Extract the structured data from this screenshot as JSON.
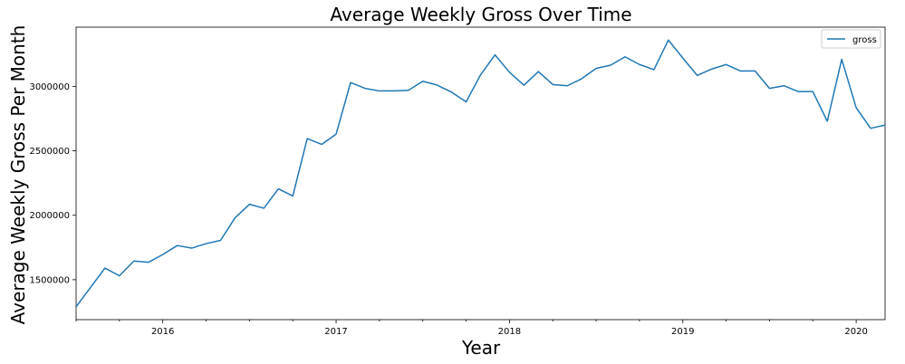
{
  "chart_data": {
    "type": "line",
    "title": "Average Weekly Gross Over Time",
    "xlabel": "Year",
    "ylabel": "Average Weekly Gross Per Month",
    "x_tick_labels": [
      "2016",
      "2017",
      "2018",
      "2019",
      "2020"
    ],
    "y_tick_labels": [
      "1500000",
      "2000000",
      "2500000",
      "3000000"
    ],
    "y_ticks": [
      1500000,
      2000000,
      2500000,
      3000000
    ],
    "ylim": [
      1190000,
      3460000
    ],
    "xlim": [
      "2015-07",
      "2020-03"
    ],
    "grid": false,
    "legend_position": "top-right",
    "series": [
      {
        "name": "gross",
        "color": "#1f77b4",
        "x": [
          "2015-07",
          "2015-08",
          "2015-09",
          "2015-10",
          "2015-11",
          "2015-12",
          "2016-01",
          "2016-02",
          "2016-03",
          "2016-04",
          "2016-05",
          "2016-06",
          "2016-07",
          "2016-08",
          "2016-09",
          "2016-10",
          "2016-11",
          "2016-12",
          "2017-01",
          "2017-02",
          "2017-03",
          "2017-04",
          "2017-05",
          "2017-06",
          "2017-07",
          "2017-08",
          "2017-09",
          "2017-10",
          "2017-11",
          "2017-12",
          "2018-01",
          "2018-02",
          "2018-03",
          "2018-04",
          "2018-05",
          "2018-06",
          "2018-07",
          "2018-08",
          "2018-09",
          "2018-10",
          "2018-11",
          "2018-12",
          "2019-01",
          "2019-02",
          "2019-03",
          "2019-04",
          "2019-05",
          "2019-06",
          "2019-07",
          "2019-08",
          "2019-09",
          "2019-10",
          "2019-11",
          "2019-12",
          "2020-01",
          "2020-02",
          "2020-03"
        ],
        "values": [
          1290000,
          1440000,
          1590000,
          1530000,
          1645000,
          1635000,
          1695000,
          1765000,
          1745000,
          1780000,
          1805000,
          1980000,
          2085000,
          2055000,
          2205000,
          2150000,
          2595000,
          2550000,
          2630000,
          3030000,
          2985000,
          2965000,
          2965000,
          2970000,
          3040000,
          3010000,
          2955000,
          2880000,
          3090000,
          3245000,
          3110000,
          3010000,
          3115000,
          3015000,
          3005000,
          3060000,
          3140000,
          3165000,
          3230000,
          3170000,
          3130000,
          3360000,
          3220000,
          3085000,
          3135000,
          3170000,
          3120000,
          3120000,
          2985000,
          3005000,
          2960000,
          2960000,
          2730000,
          3210000,
          2835000,
          2675000,
          2700000
        ]
      }
    ]
  }
}
